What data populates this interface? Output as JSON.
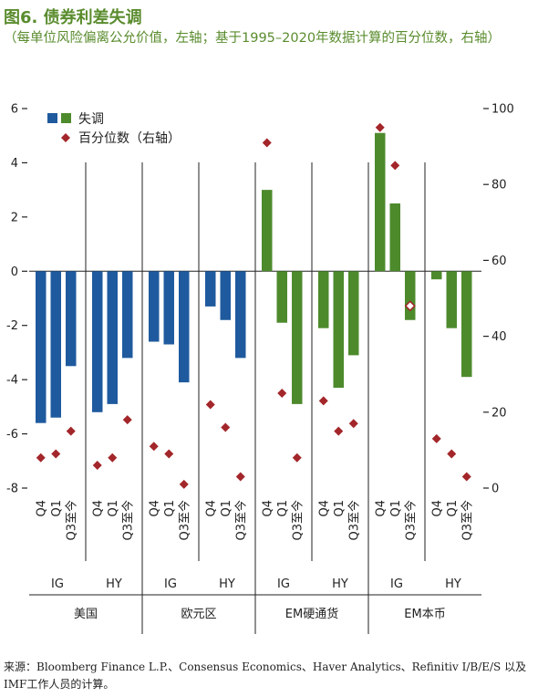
{
  "header": {
    "title": "图6. 债券利差失调",
    "subtitle": "（每单位风险偏离公允价值，左轴；基于1995–2020年数据计算的百分位数，右轴）"
  },
  "source": "来源：Bloomberg Finance L.P.、Consensus Economics、Haver Analytics、Refinitiv I/B/E/S 以及IMF工作人员的计算。",
  "chart_data": {
    "type": "bar",
    "left_axis": {
      "ylim": [
        -8,
        6
      ],
      "ticks": [
        -8,
        -6,
        -4,
        -2,
        0,
        2,
        4,
        6
      ]
    },
    "right_axis": {
      "ylim": [
        0,
        100
      ],
      "ticks": [
        0,
        20,
        40,
        60,
        80,
        100
      ]
    },
    "legend": {
      "bar": "失调",
      "marker": "百分位数（右轴）",
      "position": "top-left"
    },
    "periods": [
      "Q4",
      "Q1",
      "Q3至今"
    ],
    "groups": [
      {
        "market": "美国",
        "rating": "IG",
        "color": "#1f5a9e",
        "bars": [
          -5.6,
          -5.4,
          -3.5
        ],
        "percentiles": [
          8,
          9,
          15
        ]
      },
      {
        "market": "美国",
        "rating": "HY",
        "color": "#1f5a9e",
        "bars": [
          -5.2,
          -4.9,
          -3.2
        ],
        "percentiles": [
          6,
          8,
          18
        ]
      },
      {
        "market": "欧元区",
        "rating": "IG",
        "color": "#1f5a9e",
        "bars": [
          -2.6,
          -2.7,
          -4.1
        ],
        "percentiles": [
          11,
          9,
          1
        ]
      },
      {
        "market": "欧元区",
        "rating": "HY",
        "color": "#1f5a9e",
        "bars": [
          -1.3,
          -1.8,
          -3.2
        ],
        "percentiles": [
          22,
          16,
          3
        ]
      },
      {
        "market": "EM硬通货",
        "rating": "IG",
        "color": "#4d8a2c",
        "bars": [
          3.0,
          -1.9,
          -4.9
        ],
        "percentiles": [
          91,
          25,
          8
        ]
      },
      {
        "market": "EM硬通货",
        "rating": "HY",
        "color": "#4d8a2c",
        "bars": [
          -2.1,
          -4.3,
          -3.1
        ],
        "percentiles": [
          23,
          15,
          17
        ]
      },
      {
        "market": "EM本币",
        "rating": "IG",
        "color": "#4d8a2c",
        "bars": [
          5.1,
          2.5,
          -1.8
        ],
        "percentiles": [
          95,
          85,
          48
        ]
      },
      {
        "market": "EM本币",
        "rating": "HY",
        "color": "#4d8a2c",
        "bars": [
          -0.3,
          -2.1,
          -3.9
        ],
        "percentiles": [
          13,
          9,
          3
        ]
      }
    ],
    "markets": [
      "美国",
      "欧元区",
      "EM硬通货",
      "EM本币"
    ],
    "colors": {
      "blue": "#1f5a9e",
      "green": "#4d8a2c",
      "marker": "#a3262a",
      "highlight_marker_fill": "#ffffff"
    },
    "highlighted_marker": {
      "group": 6,
      "period": 2
    }
  }
}
